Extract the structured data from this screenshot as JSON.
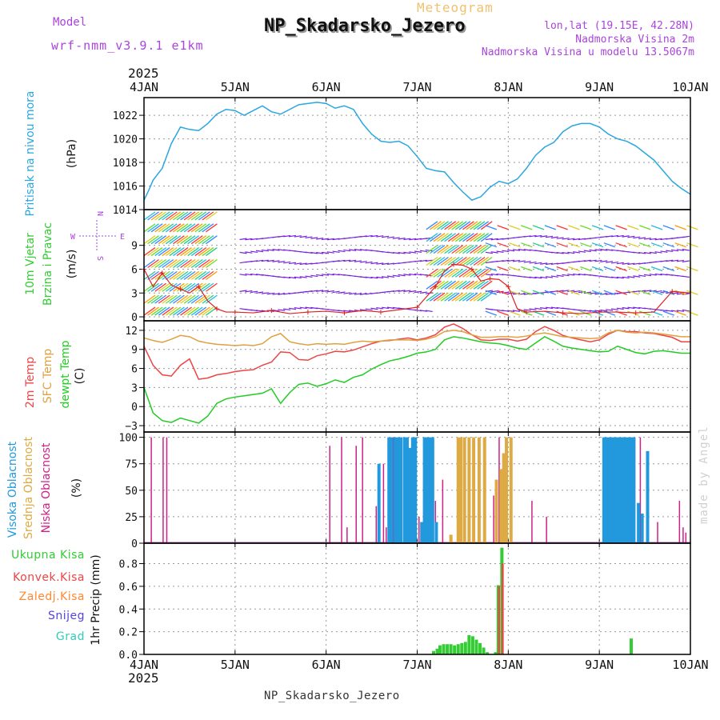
{
  "header": {
    "model_label": "Model",
    "model_value": "wrf-nmm_v3.9.1  e1km",
    "meteogram_label": "Meteogram",
    "station": "NP_Skadarsko_Jezero",
    "lonlat": "lon,lat (19.15E, 42.28N)",
    "altitude": "Nadmorska Visina 2m",
    "model_altitude": "Nadmorska Visina u modelu 13.5067m",
    "footer_station": "NP_Skadarsko_Jezero",
    "watermark": "made by Angel",
    "year_top": "2025",
    "year_bottom": "2025"
  },
  "colors": {
    "pressure": "#2aa6e0",
    "t2m": "#ee4444",
    "sfc": "#e0a040",
    "dewpt": "#22cc22",
    "high_cloud": "#2299dd",
    "mid_cloud": "#ddaa44",
    "low_cloud": "#cc2288",
    "total_precip": "#33cc33",
    "conv_precip": "#ee4444",
    "frozen_precip": "#ff8833",
    "snow": "#5544dd",
    "grad": "#33ccbb",
    "purple_text": "#aa44dd",
    "wind_label": "#33cc33"
  },
  "chart_data": [
    {
      "type": "line",
      "panel": "pressure",
      "ylabel": [
        "Pritisak na nivou mora",
        "(hPa)"
      ],
      "ylim": [
        1014,
        1023.5
      ],
      "yticks": [
        1014,
        1016,
        1018,
        1020,
        1022
      ],
      "x_days": [
        "4JAN",
        "5JAN",
        "6JAN",
        "7JAN",
        "8JAN",
        "9JAN",
        "10JAN"
      ],
      "x": [
        0.0,
        0.05,
        0.1,
        0.2,
        0.3,
        0.4,
        0.5,
        0.6,
        0.7,
        0.8,
        0.9,
        1.0,
        1.1,
        1.2,
        1.3,
        1.4,
        1.5,
        1.6,
        1.7,
        1.8,
        1.9,
        2.0,
        2.1,
        2.2,
        2.3,
        2.4,
        2.5,
        2.6,
        2.7,
        2.8,
        2.9,
        3.0,
        3.1,
        3.2,
        3.3,
        3.4,
        3.5,
        3.6,
        3.7,
        3.8,
        3.9,
        4.0,
        4.1,
        4.2,
        4.3,
        4.4,
        4.5,
        4.6,
        4.7,
        4.8,
        4.9,
        5.0,
        5.1,
        5.2,
        5.3,
        5.4,
        5.5,
        5.6,
        5.7,
        5.8,
        5.9,
        6.0
      ],
      "series": [
        {
          "values": [
            1014.8,
            1015.6,
            1016.5,
            1017.5,
            1019.6,
            1021.0,
            1020.8,
            1020.7,
            1021.3,
            1022.1,
            1022.5,
            1022.4,
            1022.0,
            1022.4,
            1022.8,
            1022.3,
            1022.1,
            1022.5,
            1022.9,
            1023.0,
            1023.1,
            1023.0,
            1022.6,
            1022.8,
            1022.5,
            1021.3,
            1020.4,
            1019.8,
            1019.7,
            1019.8,
            1019.4,
            1018.5,
            1017.5,
            1017.3,
            1017.2,
            1016.3,
            1015.5,
            1014.8,
            1015.1,
            1015.9,
            1016.4,
            1016.2,
            1016.6,
            1017.5,
            1018.6,
            1019.3,
            1019.7,
            1020.6,
            1021.1,
            1021.3,
            1021.3,
            1021.0,
            1020.4,
            1020.0,
            1019.8,
            1019.4,
            1018.8,
            1018.2,
            1017.3,
            1016.4,
            1015.8,
            1015.3
          ]
        }
      ]
    },
    {
      "type": "line",
      "panel": "wind",
      "ylabel": [
        "10m Vjetar",
        "Brzina i Pravac",
        "(m/s)"
      ],
      "compass": [
        "N",
        "E",
        "S",
        "W"
      ],
      "ylim": [
        -0.5,
        13.5
      ],
      "yticks": [
        0,
        3,
        6,
        9
      ],
      "note": "wind barbs drawn as colored arrows",
      "x": [
        0.0,
        0.1,
        0.2,
        0.3,
        0.4,
        0.5,
        0.6,
        0.7,
        0.8,
        0.9,
        1.0,
        1.2,
        1.4,
        1.6,
        1.8,
        2.0,
        2.2,
        2.4,
        2.6,
        2.8,
        3.0,
        3.1,
        3.2,
        3.3,
        3.4,
        3.5,
        3.6,
        3.7,
        3.8,
        3.9,
        4.0,
        4.1,
        4.2,
        4.4,
        4.6,
        4.8,
        5.0,
        5.2,
        5.4,
        5.6,
        5.8,
        6.0
      ],
      "series": [
        {
          "values": [
            6.0,
            3.8,
            5.5,
            4.0,
            3.5,
            3.0,
            3.8,
            2.0,
            1.0,
            0.6,
            0.6,
            0.5,
            0.8,
            0.4,
            0.6,
            0.7,
            0.5,
            0.8,
            0.6,
            0.9,
            1.2,
            2.5,
            3.8,
            5.8,
            6.6,
            6.5,
            6.0,
            4.5,
            4.8,
            4.7,
            3.8,
            1.0,
            0.6,
            0.7,
            0.5,
            0.4,
            0.6,
            0.6,
            0.5,
            0.6,
            3.2,
            3.0
          ]
        }
      ]
    },
    {
      "type": "line",
      "panel": "temperature",
      "ylabel": [
        "2m Temp",
        "SFC Temp",
        "dewpt Temp",
        "(C)"
      ],
      "ylim": [
        -4,
        13.5
      ],
      "yticks": [
        -3,
        0,
        3,
        6,
        9,
        12
      ],
      "x": [
        0.0,
        0.1,
        0.2,
        0.3,
        0.4,
        0.5,
        0.6,
        0.7,
        0.8,
        0.9,
        1.0,
        1.1,
        1.2,
        1.3,
        1.4,
        1.5,
        1.6,
        1.7,
        1.8,
        1.9,
        2.0,
        2.1,
        2.2,
        2.3,
        2.4,
        2.5,
        2.6,
        2.7,
        2.8,
        2.9,
        3.0,
        3.1,
        3.2,
        3.3,
        3.4,
        3.5,
        3.6,
        3.7,
        3.8,
        3.9,
        4.0,
        4.1,
        4.2,
        4.3,
        4.4,
        4.5,
        4.6,
        4.7,
        4.8,
        4.9,
        5.0,
        5.1,
        5.2,
        5.3,
        5.4,
        5.5,
        5.6,
        5.7,
        5.8,
        5.9,
        6.0
      ],
      "series": [
        {
          "name": "2m Temp",
          "values": [
            9.5,
            6.5,
            5.0,
            4.8,
            6.5,
            7.5,
            4.3,
            4.5,
            5.0,
            5.2,
            5.5,
            5.7,
            5.8,
            6.5,
            7.0,
            8.6,
            8.5,
            7.4,
            7.3,
            8.0,
            8.3,
            8.7,
            8.6,
            8.9,
            9.4,
            9.9,
            10.3,
            10.4,
            10.6,
            10.8,
            10.5,
            10.8,
            11.3,
            12.5,
            13.0,
            12.3,
            11.3,
            10.5,
            10.4,
            10.6,
            10.6,
            10.3,
            10.6,
            11.8,
            12.6,
            12.0,
            11.2,
            10.8,
            10.5,
            10.2,
            10.5,
            11.4,
            12.0,
            11.8,
            11.8,
            11.6,
            11.5,
            11.2,
            10.9,
            10.2,
            10.2
          ]
        },
        {
          "name": "SFC Temp",
          "values": [
            10.8,
            10.4,
            10.1,
            10.6,
            11.2,
            11.0,
            10.3,
            10.0,
            9.8,
            9.7,
            9.6,
            9.7,
            9.6,
            9.9,
            11.0,
            11.5,
            10.2,
            9.9,
            9.7,
            9.9,
            9.8,
            9.9,
            9.8,
            10.1,
            10.3,
            10.2,
            10.3,
            10.5,
            10.5,
            10.5,
            10.4,
            10.6,
            11.0,
            11.8,
            12.0,
            11.8,
            11.3,
            10.9,
            10.9,
            11.0,
            11.0,
            10.9,
            11.1,
            11.4,
            11.6,
            11.3,
            11.0,
            10.9,
            10.8,
            10.7,
            10.8,
            11.6,
            12.0,
            11.7,
            11.6,
            11.7,
            11.6,
            11.4,
            11.2,
            11.0,
            11.0
          ]
        },
        {
          "name": "dewpt Temp",
          "values": [
            3.0,
            -1.0,
            -2.2,
            -2.5,
            -1.8,
            -2.2,
            -2.6,
            -1.5,
            0.5,
            1.2,
            1.5,
            1.7,
            1.9,
            2.1,
            2.8,
            0.5,
            2.2,
            3.5,
            3.7,
            3.2,
            3.6,
            4.2,
            3.8,
            4.6,
            5.0,
            5.9,
            6.6,
            7.2,
            7.5,
            7.9,
            8.4,
            8.6,
            9.0,
            10.5,
            11.0,
            10.8,
            10.5,
            10.2,
            10.0,
            9.9,
            9.6,
            9.2,
            9.0,
            10.0,
            11.0,
            10.3,
            9.5,
            9.2,
            9.0,
            8.8,
            8.6,
            8.7,
            9.5,
            9.0,
            8.5,
            8.3,
            8.7,
            8.8,
            8.6,
            8.4,
            8.4
          ]
        }
      ]
    },
    {
      "type": "bar",
      "panel": "cloud",
      "ylabel": [
        "Visoka Oblacnost",
        "Srednja Oblacnost",
        "Niska Oblacnost",
        "(%)"
      ],
      "ylim": [
        0,
        105
      ],
      "yticks": [
        0,
        25,
        50,
        75,
        100
      ],
      "series": [
        {
          "name": "Niska Oblacnost",
          "x": [
            0.08,
            0.21,
            0.25,
            2.04,
            2.17,
            2.23,
            2.33,
            2.4,
            2.55,
            2.63,
            2.66,
            2.74,
            2.83,
            3.02,
            3.09,
            3.15,
            3.2,
            3.28,
            3.62,
            3.84,
            3.9,
            4.26,
            4.42,
            5.23,
            5.26,
            5.45,
            5.64,
            5.88,
            5.92,
            5.95
          ],
          "values": [
            100,
            100,
            100,
            92,
            100,
            15,
            92,
            100,
            35,
            75,
            15,
            100,
            100,
            25,
            100,
            50,
            40,
            60,
            50,
            45,
            100,
            40,
            25,
            25,
            100,
            100,
            20,
            40,
            15,
            10
          ]
        },
        {
          "name": "Srednja Oblacnost",
          "x": [
            3.37,
            3.45,
            3.48,
            3.52,
            3.57,
            3.62,
            3.68,
            3.74,
            3.87,
            3.92,
            3.95,
            3.98,
            4.03
          ],
          "values": [
            8,
            100,
            100,
            100,
            100,
            100,
            100,
            100,
            60,
            70,
            85,
            100,
            100
          ]
        },
        {
          "name": "Visoka Oblacnost",
          "x": [
            2.58,
            2.69,
            2.72,
            2.76,
            2.79,
            2.82,
            2.86,
            2.89,
            2.92,
            2.95,
            2.98,
            3.05,
            3.08,
            3.11,
            3.14,
            3.17,
            3.21,
            5.05,
            5.08,
            5.11,
            5.14,
            5.17,
            5.2,
            5.23,
            5.26,
            5.29,
            5.32,
            5.35,
            5.38,
            5.43,
            5.47,
            5.53
          ],
          "values": [
            75,
            100,
            100,
            100,
            100,
            100,
            100,
            100,
            90,
            100,
            100,
            20,
            100,
            100,
            100,
            100,
            20,
            100,
            100,
            100,
            100,
            100,
            100,
            100,
            100,
            100,
            100,
            100,
            100,
            38,
            28,
            87
          ]
        }
      ]
    },
    {
      "type": "bar",
      "panel": "precip",
      "ylabel": [
        "1hr Precip (mm)"
      ],
      "legend": [
        "Ukupna Kisa",
        "Konvek.Kisa",
        "Zaledj.Kisa",
        "Snijeg",
        "Grad"
      ],
      "ylim": [
        0,
        0.98
      ],
      "yticks": [
        0,
        0.2,
        0.4,
        0.6,
        0.8
      ],
      "x_days_bottom": [
        "4JAN",
        "5JAN",
        "6JAN",
        "7JAN",
        "8JAN",
        "9JAN",
        "10JAN"
      ],
      "series": [
        {
          "name": "Ukupna Kisa",
          "x": [
            3.18,
            3.22,
            3.25,
            3.29,
            3.33,
            3.37,
            3.41,
            3.45,
            3.49,
            3.53,
            3.57,
            3.61,
            3.65,
            3.69,
            3.73,
            3.77,
            3.86,
            3.89,
            3.93,
            5.35
          ],
          "values": [
            0.03,
            0.05,
            0.08,
            0.09,
            0.09,
            0.09,
            0.08,
            0.09,
            0.1,
            0.11,
            0.17,
            0.16,
            0.13,
            0.1,
            0.06,
            0.02,
            0.02,
            0.61,
            0.94,
            0.14
          ]
        },
        {
          "name": "Konvek.Kisa",
          "x": [
            3.89,
            3.93
          ],
          "values": [
            0.6,
            0.8
          ]
        }
      ]
    }
  ]
}
